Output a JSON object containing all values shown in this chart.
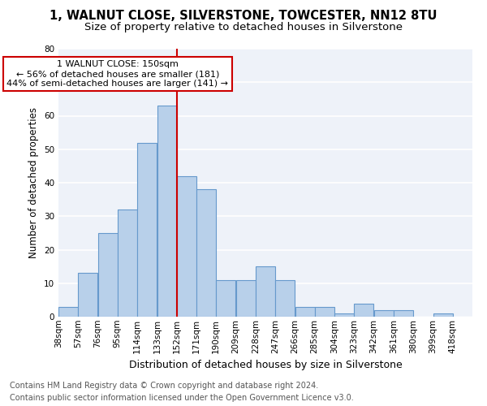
{
  "title": "1, WALNUT CLOSE, SILVERSTONE, TOWCESTER, NN12 8TU",
  "subtitle": "Size of property relative to detached houses in Silverstone",
  "xlabel": "Distribution of detached houses by size in Silverstone",
  "ylabel": "Number of detached properties",
  "categories": [
    "38sqm",
    "57sqm",
    "76sqm",
    "95sqm",
    "114sqm",
    "133sqm",
    "152sqm",
    "171sqm",
    "190sqm",
    "209sqm",
    "228sqm",
    "247sqm",
    "266sqm",
    "285sqm",
    "304sqm",
    "323sqm",
    "342sqm",
    "361sqm",
    "380sqm",
    "399sqm",
    "418sqm"
  ],
  "values": [
    3,
    13,
    25,
    32,
    52,
    63,
    42,
    38,
    11,
    11,
    15,
    11,
    3,
    3,
    1,
    4,
    2,
    2,
    0,
    1,
    0
  ],
  "bar_color": "#b8d0ea",
  "bar_edge_color": "#6699cc",
  "vline_color": "#cc0000",
  "ylim": [
    0,
    80
  ],
  "yticks": [
    0,
    10,
    20,
    30,
    40,
    50,
    60,
    70,
    80
  ],
  "annotation_line1": "1 WALNUT CLOSE: 150sqm",
  "annotation_line2": "← 56% of detached houses are smaller (181)",
  "annotation_line3": "44% of semi-detached houses are larger (141) →",
  "footer1": "Contains HM Land Registry data © Crown copyright and database right 2024.",
  "footer2": "Contains public sector information licensed under the Open Government Licence v3.0.",
  "bg_color": "#eef2f9",
  "grid_color": "#ffffff",
  "title_fontsize": 10.5,
  "subtitle_fontsize": 9.5,
  "ylabel_fontsize": 8.5,
  "xlabel_fontsize": 9,
  "tick_fontsize": 7.5,
  "annot_fontsize": 8,
  "footer_fontsize": 7
}
